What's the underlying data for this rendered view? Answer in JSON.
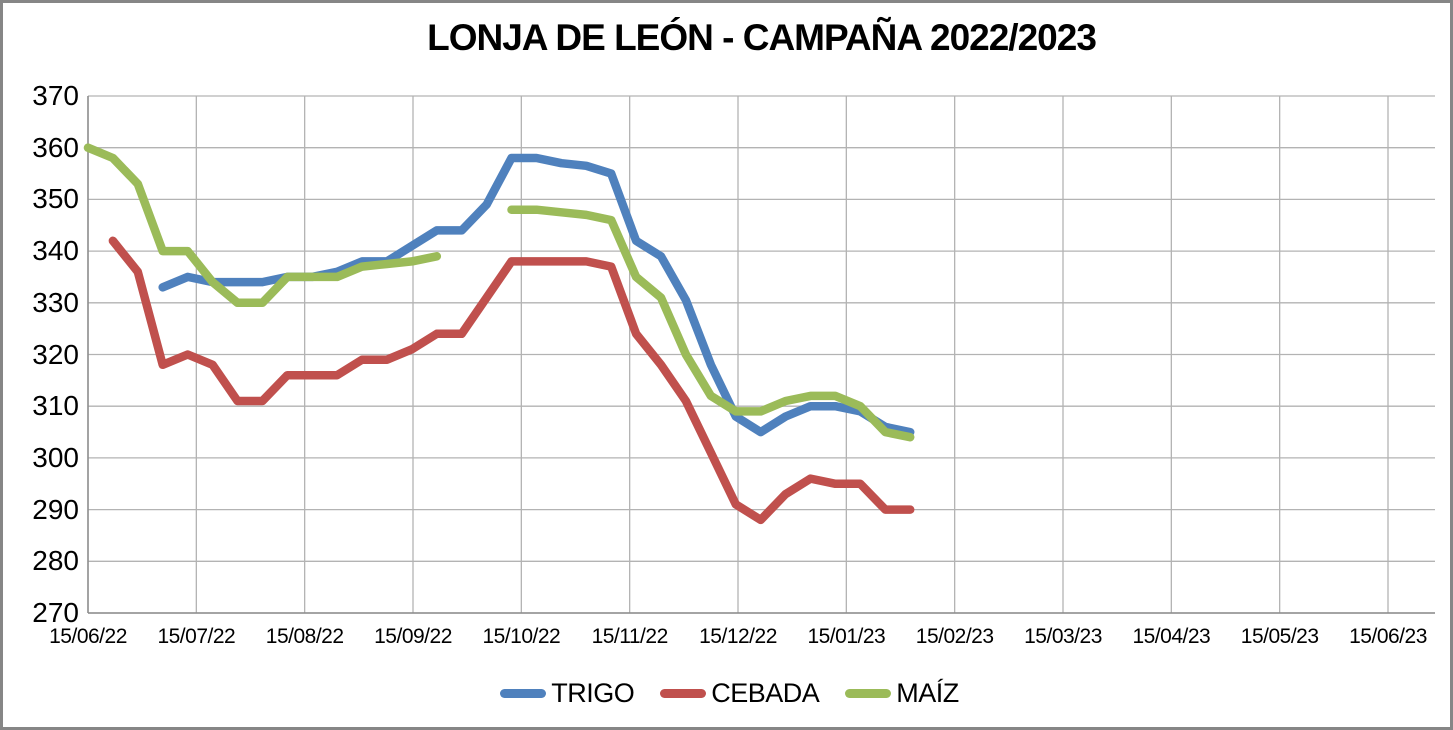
{
  "title": "LONJA DE LEÓN - CAMPAÑA 2022/2023",
  "colors": {
    "trigo": "#4F81BD",
    "cebada": "#C0504D",
    "maiz": "#9BBB59",
    "gridline": "#B3B3B3",
    "axis": "#8C8C8C",
    "frame_border": "#868686",
    "background": "#FFFFFF"
  },
  "legend": [
    {
      "id": "trigo",
      "label": "TRIGO",
      "color": "#4F81BD"
    },
    {
      "id": "cebada",
      "label": "CEBADA",
      "color": "#C0504D"
    },
    {
      "id": "maiz",
      "label": "MAÍZ",
      "color": "#9BBB59"
    }
  ],
  "y_axis": {
    "min": 270,
    "max": 370,
    "step": 10,
    "ticks": [
      "370",
      "360",
      "350",
      "340",
      "330",
      "320",
      "310",
      "300",
      "290",
      "280",
      "270"
    ]
  },
  "x_axis": {
    "ticks": [
      "15/06/22",
      "15/07/22",
      "15/08/22",
      "15/09/22",
      "15/10/22",
      "15/11/22",
      "15/12/22",
      "15/01/23",
      "15/02/23",
      "15/03/23",
      "15/04/23",
      "15/05/23",
      "15/06/23"
    ]
  },
  "chart_data": {
    "type": "line",
    "title": "LONJA DE LEÓN - CAMPAÑA 2022/2023",
    "xlabel": "",
    "ylabel": "",
    "ylim": [
      270,
      370
    ],
    "y_tick_step": 10,
    "grid": true,
    "legend_position": "bottom",
    "x_tick_labels": [
      "15/06/22",
      "15/07/22",
      "15/08/22",
      "15/09/22",
      "15/10/22",
      "15/11/22",
      "15/12/22",
      "15/01/23",
      "15/02/23",
      "15/03/23",
      "15/04/23",
      "15/05/23",
      "15/06/23"
    ],
    "x": [
      "15/06/22",
      "22/06/22",
      "29/06/22",
      "06/07/22",
      "13/07/22",
      "20/07/22",
      "27/07/22",
      "03/08/22",
      "10/08/22",
      "17/08/22",
      "24/08/22",
      "31/08/22",
      "07/09/22",
      "14/09/22",
      "21/09/22",
      "28/09/22",
      "05/10/22",
      "12/10/22",
      "19/10/22",
      "26/10/22",
      "02/11/22",
      "09/11/22",
      "16/11/22",
      "23/11/22",
      "30/11/22",
      "07/12/22",
      "14/12/22",
      "21/12/22",
      "28/12/22",
      "04/01/23",
      "11/01/23",
      "18/01/23",
      "25/01/23",
      "01/02/23"
    ],
    "series": [
      {
        "id": "trigo",
        "name": "TRIGO",
        "color": "#4F81BD",
        "values": [
          null,
          null,
          null,
          333,
          335,
          334,
          334,
          334,
          335,
          335,
          336,
          338,
          338,
          341,
          344,
          344,
          349,
          358,
          358,
          357,
          356.5,
          355,
          342,
          339,
          330.5,
          318,
          308,
          305,
          308,
          310,
          310,
          309,
          306,
          305
        ]
      },
      {
        "id": "cebada",
        "name": "CEBADA",
        "color": "#C0504D",
        "values": [
          null,
          342,
          336,
          318,
          320,
          318,
          311,
          311,
          316,
          316,
          316,
          319,
          319,
          321,
          324,
          324,
          331,
          338,
          338,
          338,
          338,
          337,
          324,
          318,
          311,
          301,
          291,
          288,
          293,
          296,
          295,
          295,
          290,
          290
        ]
      },
      {
        "id": "maiz",
        "name": "MAÍZ",
        "color": "#9BBB59",
        "values": [
          360,
          358,
          353,
          340,
          340,
          334,
          330,
          330,
          335,
          335,
          335,
          337,
          337.5,
          338,
          339,
          null,
          null,
          348,
          348,
          347.5,
          347,
          346,
          335,
          331,
          320,
          312,
          309,
          309,
          311,
          312,
          312,
          310,
          305,
          304
        ]
      }
    ]
  }
}
